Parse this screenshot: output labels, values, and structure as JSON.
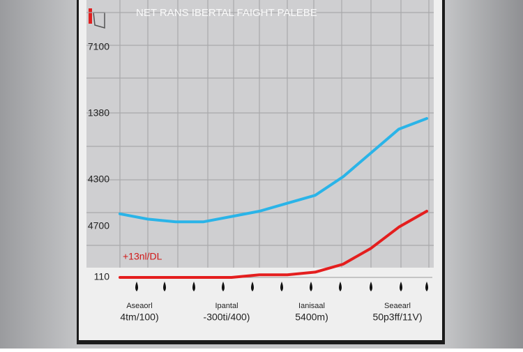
{
  "chart_data": {
    "type": "line",
    "title": "NET RANS IBERTAL FAIGHT PALEBE",
    "annotation": "+13nl/DL",
    "y_labels": [
      "7100",
      "1380",
      "4300",
      "4700",
      "110"
    ],
    "x_labels": [
      {
        "name": "Aseaorl",
        "value": "4tm/100)"
      },
      {
        "name": "Ipantal",
        "value": "-300ti/400)"
      },
      {
        "name": "Ianisaal",
        "value": "5400m)"
      },
      {
        "name": "Seaearl",
        "value": "50p3ff/11V)"
      }
    ],
    "x": [
      0,
      1,
      2,
      3,
      4,
      5,
      6,
      7,
      8,
      9,
      10,
      11
    ],
    "xlim": [
      0,
      11
    ],
    "ylim": [
      0,
      100
    ],
    "grid": true,
    "series": [
      {
        "color": "#2ab4e8",
        "values": [
          24,
          22,
          21,
          21,
          23,
          25,
          28,
          31,
          38,
          47,
          56,
          60
        ]
      },
      {
        "color": "#e41e1e",
        "values": [
          0,
          0,
          0,
          0,
          0,
          1,
          1,
          2,
          5,
          11,
          19,
          25
        ]
      }
    ]
  }
}
